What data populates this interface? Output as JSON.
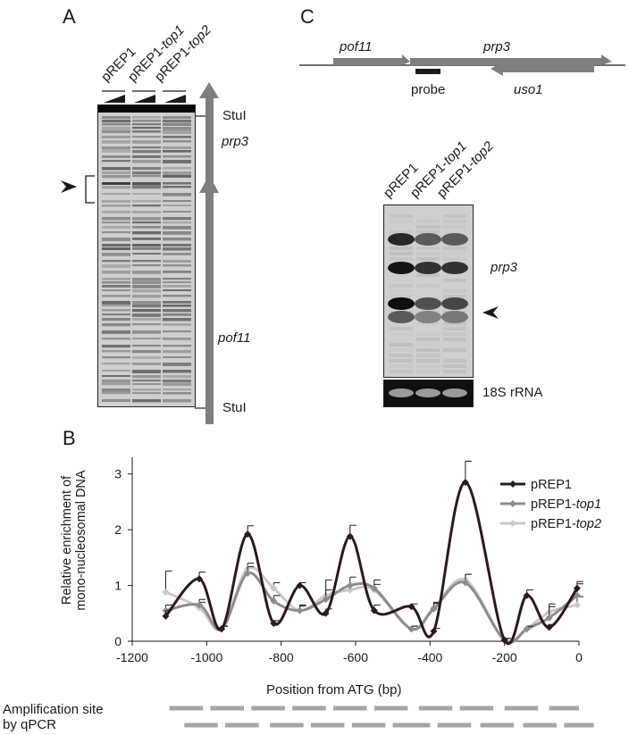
{
  "panels": {
    "A": {
      "letter": "A",
      "lanes": [
        {
          "base": "pREP1",
          "suffix": ""
        },
        {
          "base": "pREP1-",
          "suffix": "top1"
        },
        {
          "base": "pREP1-",
          "suffix": "top2"
        }
      ],
      "labels": {
        "stui_top": "StuI",
        "prp3": "prp3",
        "pof11": "pof11",
        "stui_bottom": "StuI"
      }
    },
    "B": {
      "letter": "B"
    },
    "C": {
      "letter": "C",
      "gene_labels": {
        "pof11": "pof11",
        "prp3": "prp3",
        "probe": "probe",
        "uso1": "uso1"
      },
      "lanes": [
        {
          "base": "pREP1",
          "suffix": ""
        },
        {
          "base": "pREP1-",
          "suffix": "top1"
        },
        {
          "base": "pREP1-",
          "suffix": "top2"
        }
      ],
      "labels": {
        "prp3": "prp3",
        "rrna": "18S rRNA"
      }
    }
  },
  "chart_data": {
    "type": "line",
    "xlabel": "Position from ATG (bp)",
    "ylabel": [
      "Relative enrichment of",
      "mono-nucleosomal DNA"
    ],
    "xlim": [
      -1200,
      0
    ],
    "ylim": [
      0,
      3.3
    ],
    "xticks": [
      -1200,
      -1000,
      -800,
      -600,
      -400,
      -200,
      0
    ],
    "yticks": [
      0,
      1,
      2,
      3
    ],
    "legend_position": "top-right",
    "colors": {
      "pREP1": "#2a1a1a",
      "top1": "#8c8c8c",
      "top2": "#c8c8c8"
    },
    "series": [
      {
        "name": "pREP1",
        "suffix": "",
        "color": "#2a1a1a",
        "x": [
          -1110,
          -1020,
          -960,
          -890,
          -820,
          -750,
          -680,
          -615,
          -550,
          -450,
          -390,
          -305,
          -200,
          -140,
          -80,
          -5
        ],
        "y": [
          0.45,
          1.12,
          0.22,
          1.92,
          0.32,
          1.0,
          0.5,
          1.88,
          0.55,
          0.62,
          0.18,
          2.85,
          0.02,
          0.82,
          0.25,
          0.95
        ],
        "err": [
          0.1,
          0.12,
          0.05,
          0.15,
          0.05,
          0.05,
          0.08,
          0.2,
          0.1,
          0.05,
          0.05,
          0.38,
          0.03,
          0.1,
          0.05,
          0.08
        ]
      },
      {
        "name": "pREP1-",
        "suffix": "top1",
        "color": "#8c8c8c",
        "x": [
          -1110,
          -1020,
          -960,
          -890,
          -820,
          -750,
          -680,
          -615,
          -550,
          -450,
          -390,
          -305,
          -200,
          -140,
          -80,
          -5
        ],
        "y": [
          0.55,
          0.65,
          0.22,
          1.22,
          0.72,
          0.55,
          0.75,
          1.0,
          0.95,
          0.22,
          0.58,
          1.05,
          0.02,
          0.22,
          0.42,
          0.82
        ],
        "err": [
          0.1,
          0.1,
          0.05,
          0.12,
          0.1,
          0.08,
          0.35,
          0.15,
          0.15,
          0.05,
          0.1,
          0.15,
          0.03,
          0.05,
          0.25,
          0.25
        ]
      },
      {
        "name": "pREP1-",
        "suffix": "top2",
        "color": "#c8c8c8",
        "x": [
          -1110,
          -1020,
          -960,
          -890,
          -820,
          -750,
          -680,
          -615,
          -550,
          -450,
          -390,
          -305,
          -200,
          -140,
          -80,
          -5
        ],
        "y": [
          0.88,
          0.6,
          0.22,
          1.3,
          0.95,
          0.55,
          0.82,
          0.92,
          0.92,
          0.22,
          0.6,
          1.1,
          0.02,
          0.22,
          0.52,
          0.65
        ],
        "err": [
          0.38,
          0.1,
          0.05,
          0.1,
          0.1,
          0.1,
          0.1,
          0.1,
          0.1,
          0.05,
          0.1,
          0.1,
          0.03,
          0.05,
          0.1,
          0.15
        ]
      }
    ]
  },
  "amplification": {
    "label_line1": "Amplification site",
    "label_line2": "by qPCR",
    "row1": [
      [
        -1100,
        -1010
      ],
      [
        -990,
        -900
      ],
      [
        -880,
        -790
      ],
      [
        -770,
        -680
      ],
      [
        -660,
        -570
      ],
      [
        -550,
        -460
      ],
      [
        -430,
        -340
      ],
      [
        -320,
        -230
      ],
      [
        -200,
        -110
      ],
      [
        -80,
        0
      ]
    ],
    "row2": [
      [
        -1060,
        -970
      ],
      [
        -950,
        -860
      ],
      [
        -830,
        -740
      ],
      [
        -720,
        -630
      ],
      [
        -610,
        -520
      ],
      [
        -500,
        -400
      ],
      [
        -380,
        -290
      ],
      [
        -265,
        -175
      ],
      [
        -150,
        -60
      ],
      [
        -40,
        40
      ]
    ]
  }
}
